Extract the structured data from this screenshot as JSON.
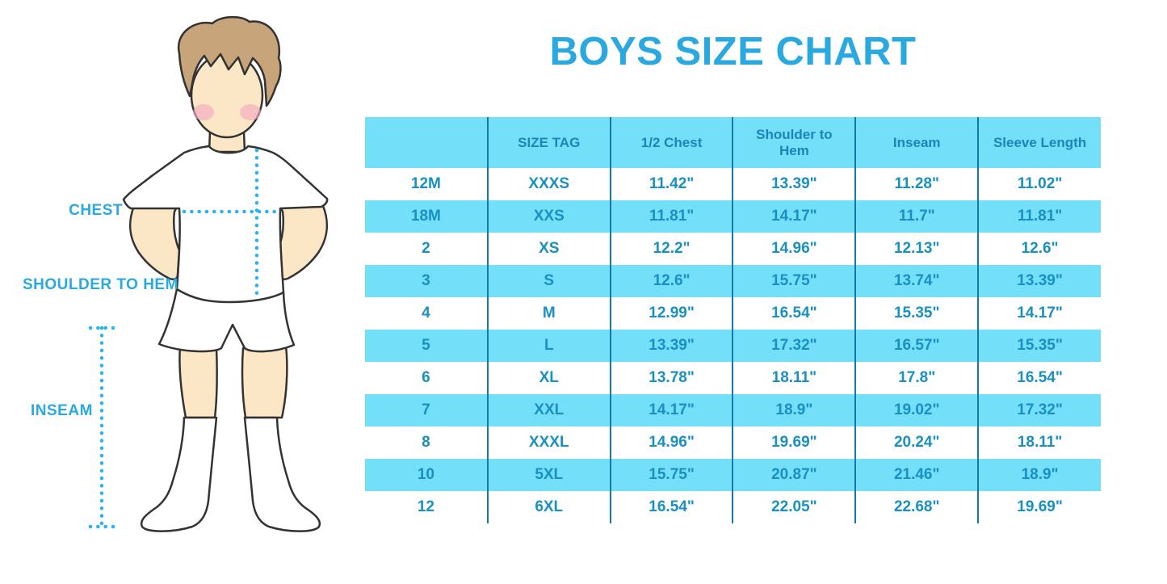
{
  "title": "BOYS SIZE CHART",
  "figure": {
    "description": "cartoon boy in white t-shirt, shorts and knee socks with measurement guides",
    "labels": {
      "chest": "CHEST",
      "shoulder_to_hem": "SHOULDER TO HEM",
      "inseam": "INSEAM"
    }
  },
  "chart_data": {
    "type": "table",
    "title": "BOYS SIZE CHART",
    "columns": [
      "",
      "SIZE TAG",
      "1/2 Chest",
      "Shoulder to Hem",
      "Inseam",
      "Sleeve Length"
    ],
    "rows": [
      [
        "12M",
        "XXXS",
        "11.42\"",
        "13.39\"",
        "11.28\"",
        "11.02\""
      ],
      [
        "18M",
        "XXS",
        "11.81\"",
        "14.17\"",
        "11.7\"",
        "11.81\""
      ],
      [
        "2",
        "XS",
        "12.2\"",
        "14.96\"",
        "12.13\"",
        "12.6\""
      ],
      [
        "3",
        "S",
        "12.6\"",
        "15.75\"",
        "13.74\"",
        "13.39\""
      ],
      [
        "4",
        "M",
        "12.99\"",
        "16.54\"",
        "15.35\"",
        "14.17\""
      ],
      [
        "5",
        "L",
        "13.39\"",
        "17.32\"",
        "16.57\"",
        "15.35\""
      ],
      [
        "6",
        "XL",
        "13.78\"",
        "18.11\"",
        "17.8\"",
        "16.54\""
      ],
      [
        "7",
        "XXL",
        "14.17\"",
        "18.9\"",
        "19.02\"",
        "17.32\""
      ],
      [
        "8",
        "XXXL",
        "14.96\"",
        "19.69\"",
        "20.24\"",
        "18.11\""
      ],
      [
        "10",
        "5XL",
        "15.75\"",
        "20.87\"",
        "21.46\"",
        "18.9\""
      ],
      [
        "12",
        "6XL",
        "16.54\"",
        "22.05\"",
        "22.68\"",
        "19.69\""
      ]
    ],
    "layout": {
      "row_striping": "white / light-blue alternating, header light-blue",
      "grid": "vertical column separators only"
    }
  },
  "colors": {
    "accent_blue": "#29A9E0",
    "table_fill_blue": "#74DFF8",
    "table_text_blue": "#1890C4",
    "column_line_blue": "#1678AA",
    "dotted_line_blue": "#29B5EA",
    "skin": "#FBE7C5",
    "hair": "#C7A479",
    "blush": "#F3A9BE",
    "outline": "#333333"
  }
}
